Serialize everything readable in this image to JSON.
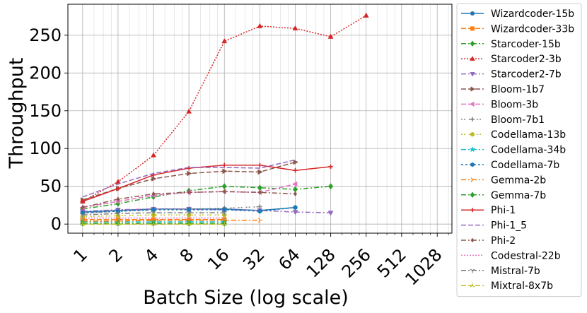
{
  "chart_data": {
    "type": "line",
    "title": "",
    "xlabel": "Batch Size (log scale)",
    "ylabel": "Throughput",
    "x_scale": "log2",
    "x_ticks": [
      1,
      2,
      4,
      8,
      16,
      32,
      64,
      128,
      256,
      512,
      1028
    ],
    "x_tick_labels": [
      "1",
      "2",
      "4",
      "8",
      "16",
      "32",
      "64",
      "128",
      "256",
      "512",
      "1028"
    ],
    "y_ticks": [
      0,
      50,
      100,
      150,
      200,
      250
    ],
    "ylim": [
      -12,
      291
    ],
    "xlim": [
      0.75,
      1370
    ],
    "grid": true,
    "legend_position": "right",
    "series": [
      {
        "name": "Wizardcoder-15b",
        "color": "#1f77b4",
        "dash": "",
        "marker": "circle",
        "x": [
          1,
          2,
          4,
          8,
          16,
          32,
          64
        ],
        "y": [
          16,
          18,
          20,
          20,
          20,
          18,
          22
        ]
      },
      {
        "name": "Wizardcoder-33b",
        "color": "#ff7f0e",
        "dash": "7,3",
        "marker": "square",
        "x": [
          1,
          2,
          4,
          8,
          16
        ],
        "y": [
          6,
          6,
          6,
          6,
          6
        ]
      },
      {
        "name": "Starcoder-15b",
        "color": "#2ca02c",
        "dash": "7,3,2,3",
        "marker": "diamond",
        "x": [
          1,
          2,
          4,
          8,
          16,
          32,
          64,
          128
        ],
        "y": [
          20,
          27,
          36,
          44,
          50,
          48,
          46,
          50
        ]
      },
      {
        "name": "Starcoder2-3b",
        "color": "#d62728",
        "dash": "2,2",
        "marker": "triangle-up",
        "x": [
          1,
          2,
          4,
          8,
          16,
          32,
          64,
          128,
          256
        ],
        "y": [
          30,
          56,
          91,
          149,
          242,
          262,
          259,
          248,
          276
        ]
      },
      {
        "name": "Starcoder2-7b",
        "color": "#9467bd",
        "dash": "7,3,2,3",
        "marker": "triangle-down",
        "x": [
          1,
          2,
          4,
          8,
          16,
          32,
          64,
          128
        ],
        "y": [
          17,
          19,
          20,
          20,
          19,
          18,
          16,
          15
        ]
      },
      {
        "name": "Bloom-1b7",
        "color": "#8c564b",
        "dash": "7,3",
        "marker": "triangle-right",
        "x": [
          1,
          2,
          4,
          8,
          16,
          32,
          64
        ],
        "y": [
          32,
          47,
          60,
          67,
          70,
          69,
          82
        ]
      },
      {
        "name": "Bloom-3b",
        "color": "#e377c2",
        "dash": "7,3",
        "marker": "triangle-left",
        "x": [
          1,
          2,
          4,
          8,
          16,
          32,
          64
        ],
        "y": [
          22,
          30,
          38,
          42,
          43,
          42,
          53
        ]
      },
      {
        "name": "Bloom-7b1",
        "color": "#7f7f7f",
        "dash": "2,2,2,5",
        "marker": "plus",
        "x": [
          1,
          2,
          4,
          8,
          16,
          32
        ],
        "y": [
          14,
          17,
          19,
          20,
          21,
          23
        ]
      },
      {
        "name": "Codellama-13b",
        "color": "#bcbd22",
        "dash": "2,2,2,5",
        "marker": "octagon",
        "x": [
          1,
          2,
          4,
          8,
          16
        ],
        "y": [
          10,
          11,
          12,
          12,
          12
        ]
      },
      {
        "name": "Codellama-34b",
        "color": "#17becf",
        "dash": "7,3,2,3",
        "marker": "star",
        "x": [
          1,
          2,
          4,
          8,
          16
        ],
        "y": [
          3,
          3,
          3,
          3,
          3
        ]
      },
      {
        "name": "Codellama-7b",
        "color": "#1f77b4",
        "dash": "3,3",
        "marker": "hexagon",
        "x": [
          1,
          2,
          4,
          8,
          16,
          32,
          64
        ],
        "y": [
          15,
          17,
          19,
          19,
          19,
          17,
          22
        ]
      },
      {
        "name": "Gemma-2b",
        "color": "#ff7f0e",
        "dash": "7,3,2,3",
        "marker": "tri-right",
        "x": [
          1,
          2,
          4,
          8,
          16,
          32
        ],
        "y": [
          4,
          4,
          5,
          5,
          5,
          5
        ]
      },
      {
        "name": "Gemma-7b",
        "color": "#2ca02c",
        "dash": "7,3,2,3",
        "marker": "diamond",
        "x": [
          1,
          2,
          4,
          8,
          16
        ],
        "y": [
          1,
          1,
          1,
          1,
          1
        ]
      },
      {
        "name": "Phi-1",
        "color": "#d62728",
        "dash": "",
        "marker": "plus",
        "x": [
          1,
          2,
          4,
          8,
          16,
          32,
          64,
          128
        ],
        "y": [
          30,
          47,
          65,
          74,
          78,
          78,
          71,
          76
        ]
      },
      {
        "name": "Phi-1_5",
        "color": "#9467bd",
        "dash": "7,3",
        "marker": "none",
        "x": [
          1,
          2,
          4,
          8,
          16,
          32,
          64
        ],
        "y": [
          36,
          53,
          67,
          75,
          75,
          74,
          85
        ]
      },
      {
        "name": "Phi-2",
        "color": "#8c564b",
        "dash": "7,3,2,3",
        "marker": "small-diamond",
        "x": [
          1,
          2,
          4,
          8,
          16,
          32,
          64
        ],
        "y": [
          22,
          33,
          40,
          42,
          43,
          42,
          40
        ]
      },
      {
        "name": "Codestral-22b",
        "color": "#e377c2",
        "dash": "2,2",
        "marker": "none",
        "x": [
          1,
          2,
          4,
          8,
          16
        ],
        "y": [
          8,
          8,
          8,
          8,
          8
        ]
      },
      {
        "name": "Mistral-7b",
        "color": "#7f7f7f",
        "dash": "7,3,2,3",
        "marker": "tri-down",
        "x": [
          1,
          2,
          4,
          8,
          16
        ],
        "y": [
          12,
          14,
          15,
          15,
          15
        ]
      },
      {
        "name": "Mixtral-8x7b",
        "color": "#bcbd22",
        "dash": "7,3",
        "marker": "tri-up",
        "x": [
          1,
          2,
          4,
          8,
          16
        ],
        "y": [
          0,
          0,
          0,
          0,
          0
        ]
      }
    ]
  }
}
